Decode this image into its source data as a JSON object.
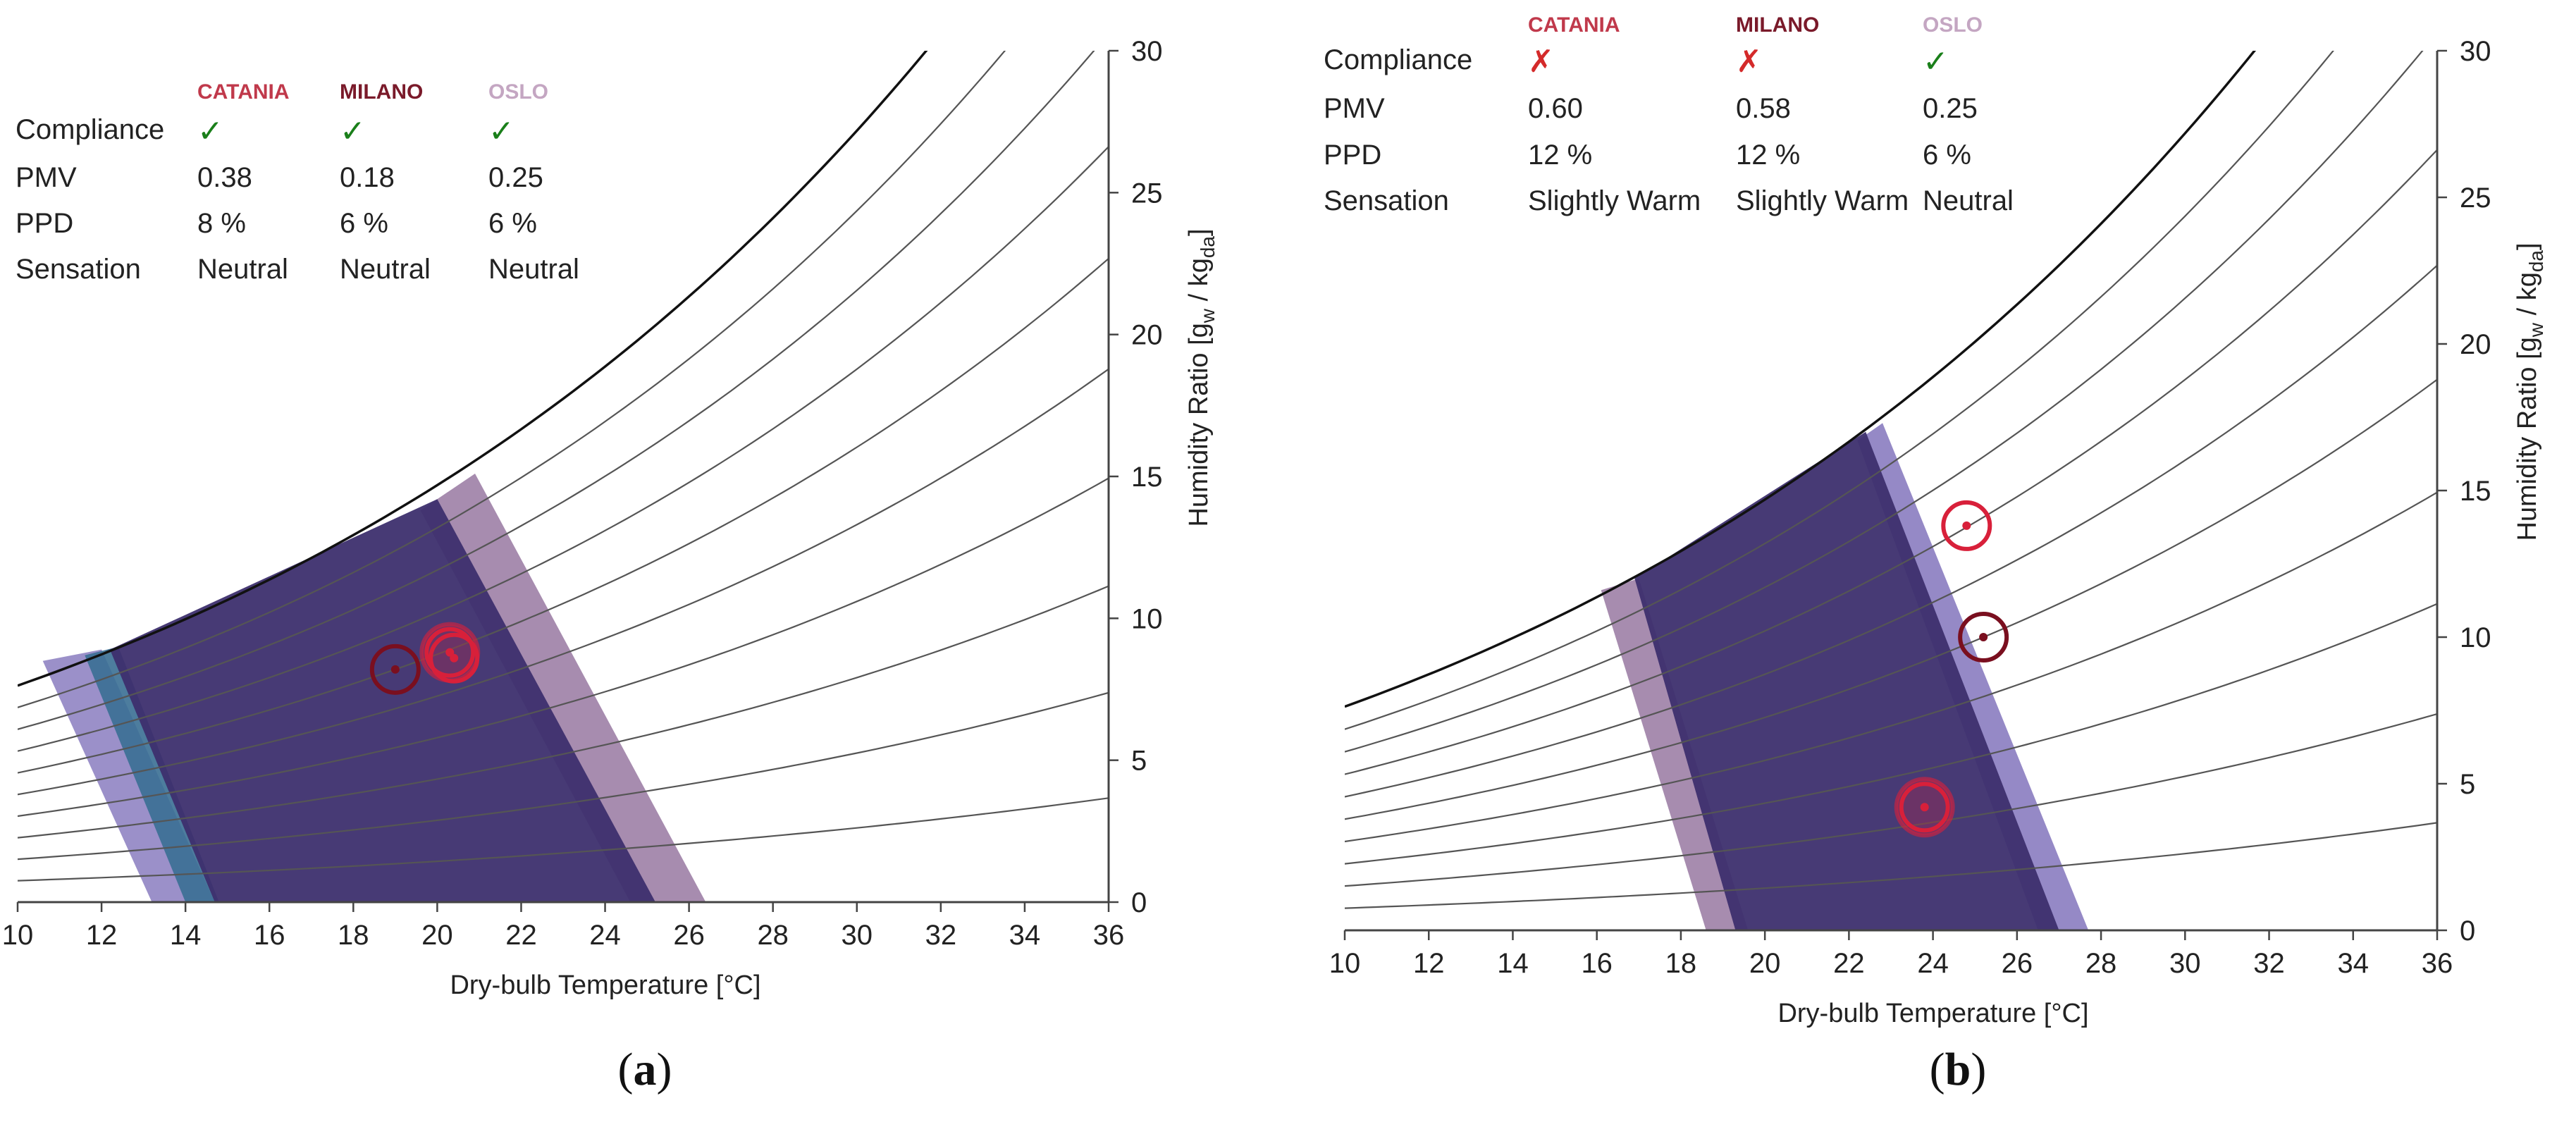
{
  "colors": {
    "catania": "#c0394b",
    "milano": "#7a1a2a",
    "oslo": "#c4a6c2",
    "check": "#1a7f1a",
    "cross": "#d42a2a",
    "zone_main": "#3d2f6e",
    "zone_blue": "#3a6f93",
    "zone_lavender": "#8a7cc0",
    "zone_pink": "#9d7fa6",
    "saturation": "#111111",
    "rh_curve": "#555555",
    "marker_catania": "#d8203a",
    "marker_milano": "#7a0f1f"
  },
  "captions": {
    "a": "(a)",
    "b": "(b)"
  },
  "chart_data": [
    {
      "type": "scatter",
      "id": "a",
      "title": "",
      "xlabel": "Dry-bulb Temperature [°C]",
      "ylabel_main": "Humidity Ratio [g",
      "ylabel_sub1": "w",
      "ylabel_mid": " / kg",
      "ylabel_sub2": "da",
      "ylabel_end": "]",
      "xlim": [
        10,
        36
      ],
      "ylim": [
        0,
        30
      ],
      "x_ticks": [
        "10",
        "12",
        "14",
        "16",
        "18",
        "20",
        "22",
        "24",
        "26",
        "28",
        "30",
        "32",
        "34",
        "36"
      ],
      "y_ticks": [
        "0",
        "5",
        "10",
        "15",
        "20",
        "25",
        "30"
      ],
      "rh_levels": [
        0.1,
        0.2,
        0.3,
        0.4,
        0.5,
        0.6,
        0.7,
        0.8,
        0.9
      ],
      "zones": [
        {
          "name": "zone-lavender",
          "color": "zone_lavender",
          "opacity": 0.85,
          "poly": [
            [
              10.6,
              8.5
            ],
            [
              13.2,
              0
            ],
            [
              14.7,
              0
            ],
            [
              12.0,
              8.9
            ]
          ]
        },
        {
          "name": "zone-blue",
          "color": "zone_blue",
          "opacity": 0.9,
          "poly": [
            [
              11.6,
              8.7
            ],
            [
              14.0,
              0
            ],
            [
              14.8,
              0
            ],
            [
              12.4,
              9.0
            ]
          ]
        },
        {
          "name": "zone-pink",
          "color": "zone_pink",
          "opacity": 0.9,
          "poly": [
            [
              20.9,
              15.1
            ],
            [
              26.4,
              0
            ],
            [
              24.6,
              0
            ],
            [
              19.6,
              13.8
            ]
          ]
        },
        {
          "name": "zone-main",
          "color": "zone_main",
          "opacity": 0.95,
          "poly": [
            [
              12.2,
              8.9
            ],
            [
              14.7,
              0
            ],
            [
              25.2,
              0
            ],
            [
              20.0,
              14.2
            ]
          ]
        }
      ],
      "points": [
        {
          "series": "CATANIA",
          "x": 20.3,
          "y": 8.8,
          "color": "marker_catania",
          "halo": true
        },
        {
          "series": "CATANIA",
          "x": 20.4,
          "y": 8.6,
          "color": "marker_catania",
          "halo": false
        },
        {
          "series": "MILANO",
          "x": 19.0,
          "y": 8.2,
          "color": "marker_milano",
          "halo": false
        }
      ],
      "table": {
        "headers": [
          "CATANIA",
          "MILANO",
          "OSLO"
        ],
        "rows": [
          {
            "label": "Compliance",
            "values": [
              "✓",
              "✓",
              "✓"
            ],
            "kind": "mark"
          },
          {
            "label": "PMV",
            "values": [
              "0.38",
              "0.18",
              "0.25"
            ],
            "kind": "text"
          },
          {
            "label": "PPD",
            "values": [
              "8 %",
              "6 %",
              "6 %"
            ],
            "kind": "text"
          },
          {
            "label": "Sensation",
            "values": [
              "Neutral",
              "Neutral",
              "Neutral"
            ],
            "kind": "text"
          }
        ]
      }
    },
    {
      "type": "scatter",
      "id": "b",
      "title": "",
      "xlabel": "Dry-bulb Temperature [°C]",
      "ylabel_main": "Humidity Ratio [g",
      "ylabel_sub1": "w",
      "ylabel_mid": " / kg",
      "ylabel_sub2": "da",
      "ylabel_end": "]",
      "xlim": [
        10,
        36
      ],
      "ylim": [
        0,
        30
      ],
      "x_ticks": [
        "10",
        "12",
        "14",
        "16",
        "18",
        "20",
        "22",
        "24",
        "26",
        "28",
        "30",
        "32",
        "34",
        "36"
      ],
      "y_ticks": [
        "0",
        "5",
        "10",
        "15",
        "20",
        "25",
        "30"
      ],
      "rh_levels": [
        0.1,
        0.2,
        0.3,
        0.4,
        0.5,
        0.6,
        0.7,
        0.8,
        0.9
      ],
      "zones": [
        {
          "name": "zone-pink",
          "color": "zone_pink",
          "opacity": 0.9,
          "poly": [
            [
              16.1,
              11.6
            ],
            [
              18.6,
              0
            ],
            [
              19.6,
              0
            ],
            [
              17.0,
              12.0
            ]
          ]
        },
        {
          "name": "zone-lavender",
          "color": "zone_lavender",
          "opacity": 0.9,
          "poly": [
            [
              22.8,
              17.3
            ],
            [
              27.7,
              0
            ],
            [
              26.5,
              0
            ],
            [
              22.2,
              16.7
            ]
          ]
        },
        {
          "name": "zone-main",
          "color": "zone_main",
          "opacity": 0.95,
          "poly": [
            [
              16.9,
              12.0
            ],
            [
              19.3,
              0
            ],
            [
              27.0,
              0
            ],
            [
              22.4,
              17.0
            ]
          ]
        }
      ],
      "points": [
        {
          "series": "CATANIA",
          "x": 24.8,
          "y": 13.8,
          "color": "marker_catania",
          "halo": false
        },
        {
          "series": "MILANO",
          "x": 25.2,
          "y": 10.0,
          "color": "marker_milano",
          "halo": false
        },
        {
          "series": "OSLO",
          "x": 23.8,
          "y": 4.2,
          "color": "marker_catania",
          "halo": true
        }
      ],
      "table": {
        "headers": [
          "CATANIA",
          "MILANO",
          "OSLO"
        ],
        "rows": [
          {
            "label": "Compliance",
            "values": [
              "✗",
              "✗",
              "✓"
            ],
            "kind": "mark"
          },
          {
            "label": "PMV",
            "values": [
              "0.60",
              "0.58",
              "0.25"
            ],
            "kind": "text"
          },
          {
            "label": "PPD",
            "values": [
              "12 %",
              "12 %",
              "6 %"
            ],
            "kind": "text"
          },
          {
            "label": "Sensation",
            "values": [
              "Slightly Warm",
              "Slightly Warm",
              "Neutral"
            ],
            "kind": "text"
          }
        ]
      }
    }
  ]
}
